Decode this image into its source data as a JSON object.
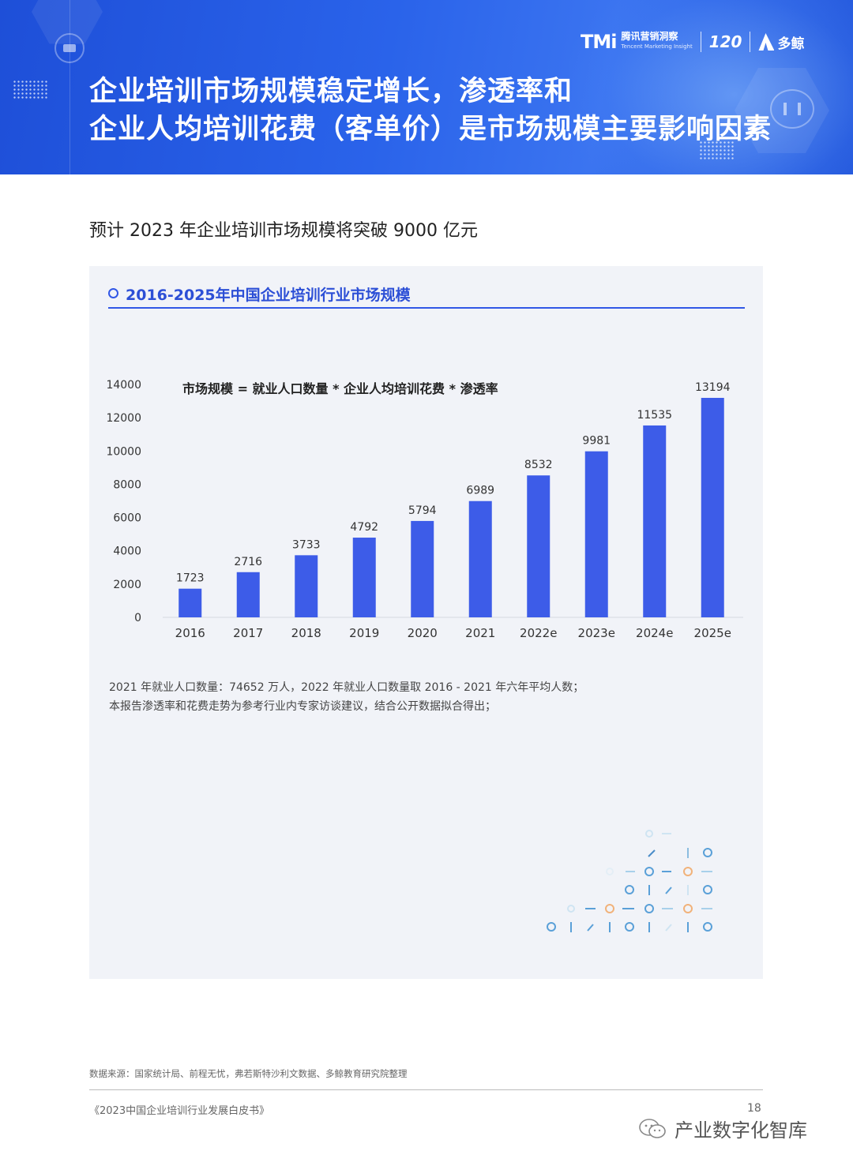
{
  "header": {
    "title_line1": "企业培训市场规模稳定增长，渗透率和",
    "title_line2": "企业人均培训花费（客单价）是市场规模主要影响因素",
    "logo_tmi": "TMi",
    "logo_tmi_cn": "腾讯营销洞察",
    "logo_tmi_en": "Tencent Marketing Insight",
    "logo_120": "120",
    "logo_duojing": "多鲸"
  },
  "subtitle": "预计 2023 年企业培训市场规模将突破 9000 亿元",
  "card": {
    "heading": "2016-2025年中国企业培训行业市场规模",
    "formula": "市场规模 = 就业人口数量 * 企业人均培训花费 * 渗透率",
    "note_line1": "2021 年就业人口数量：74652 万人，2022 年就业人口数量取 2016 - 2021 年六年平均人数；",
    "note_line2": "本报告渗透率和花费走势为参考行业内专家访谈建议，结合公开数据拟合得出；"
  },
  "chart_data": {
    "type": "bar",
    "title": "2016-2025年中国企业培训行业市场规模",
    "categories": [
      "2016",
      "2017",
      "2018",
      "2019",
      "2020",
      "2021",
      "2022e",
      "2023e",
      "2024e",
      "2025e"
    ],
    "values": [
      1723,
      2716,
      3733,
      4792,
      5794,
      6989,
      8532,
      9981,
      11535,
      13194
    ],
    "ylim": [
      0,
      14000
    ],
    "yticks": [
      "0",
      "2000",
      "4000",
      "6000",
      "8000",
      "10000",
      "12000",
      "14000"
    ],
    "grid": false,
    "bar_color": "#3d5ce8"
  },
  "footer": {
    "source": "数据来源：国家统计局、前程无忧，弗若斯特沙利文数据、多鲸教育研究院整理",
    "doc_name": "《2023中国企业培训行业发展白皮书》",
    "page_number": "18",
    "watermark": "产业数字化智库"
  }
}
